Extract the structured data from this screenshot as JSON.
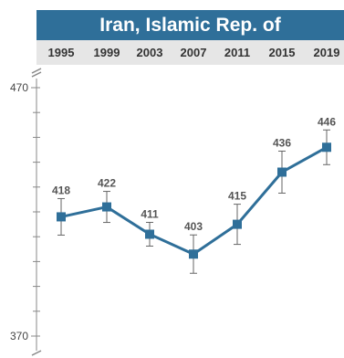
{
  "chart_data": {
    "type": "line",
    "title": "Iran, Islamic Rep. of",
    "categories": [
      "1995",
      "1999",
      "2003",
      "2007",
      "2011",
      "2015",
      "2019"
    ],
    "series": [
      {
        "values": [
          418,
          422,
          411,
          403,
          415,
          436,
          446
        ]
      }
    ],
    "ylim": [
      370,
      470
    ],
    "y_tick_labels": [
      "470",
      "370"
    ],
    "error_bars": true,
    "grid": false,
    "colors": {
      "line": "#2f6f99",
      "title_bar": "#2f6f99",
      "label": "#555555"
    }
  }
}
